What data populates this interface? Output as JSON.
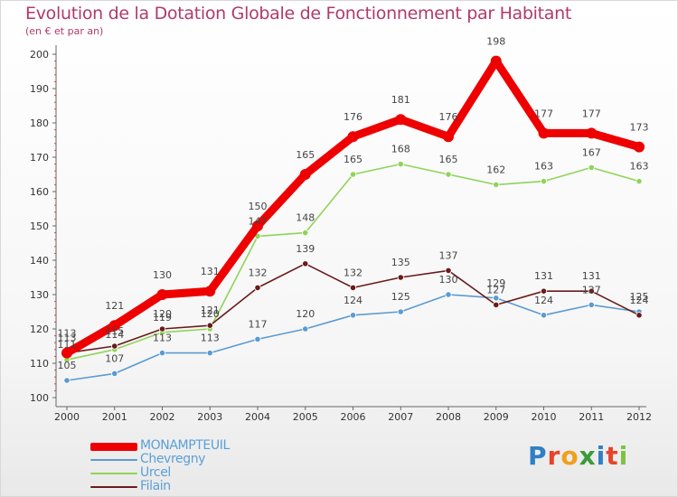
{
  "header": {
    "title": "Evolution de la Dotation Globale de Fonctionnement par Habitant",
    "subtitle": "(en € et par an)"
  },
  "logo": {
    "letters": [
      "P",
      "r",
      "o",
      "x",
      "i",
      "t",
      "i"
    ],
    "colors": [
      "#2f7fc4",
      "#e8432a",
      "#f0a01c",
      "#3b9a3b",
      "#2f7fc4",
      "#e8432a",
      "#7cc242"
    ]
  },
  "chart_data": {
    "type": "line",
    "title": "Evolution de la Dotation Globale de Fonctionnement par Habitant",
    "subtitle": "(en € et par an)",
    "xlabel": "",
    "ylabel": "",
    "x": [
      "2000",
      "2001",
      "2002",
      "2003",
      "2004",
      "2005",
      "2006",
      "2007",
      "2008",
      "2009",
      "2010",
      "2011",
      "2012"
    ],
    "ylim": [
      100,
      200
    ],
    "yticks": [
      100,
      110,
      120,
      130,
      140,
      150,
      160,
      170,
      180,
      190,
      200
    ],
    "grid": false,
    "legend_position": "bottom-left",
    "series": [
      {
        "name": "MONAMPTEUIL",
        "color": "#ee0000",
        "values": [
          113,
          121,
          130,
          131,
          150,
          165,
          176,
          181,
          176,
          198,
          177,
          177,
          173
        ]
      },
      {
        "name": "Chevregny",
        "color": "#5b9bd0",
        "values": [
          105,
          107,
          113,
          113,
          117,
          120,
          124,
          125,
          130,
          129,
          124,
          127,
          125
        ]
      },
      {
        "name": "Urcel",
        "color": "#8fd45a",
        "values": [
          111,
          114,
          119,
          120,
          147,
          148,
          165,
          168,
          165,
          162,
          163,
          167,
          163
        ]
      },
      {
        "name": "Filain",
        "color": "#6b1a1a",
        "values": [
          113,
          115,
          120,
          121,
          132,
          139,
          132,
          135,
          137,
          127,
          131,
          131,
          124
        ]
      }
    ]
  }
}
